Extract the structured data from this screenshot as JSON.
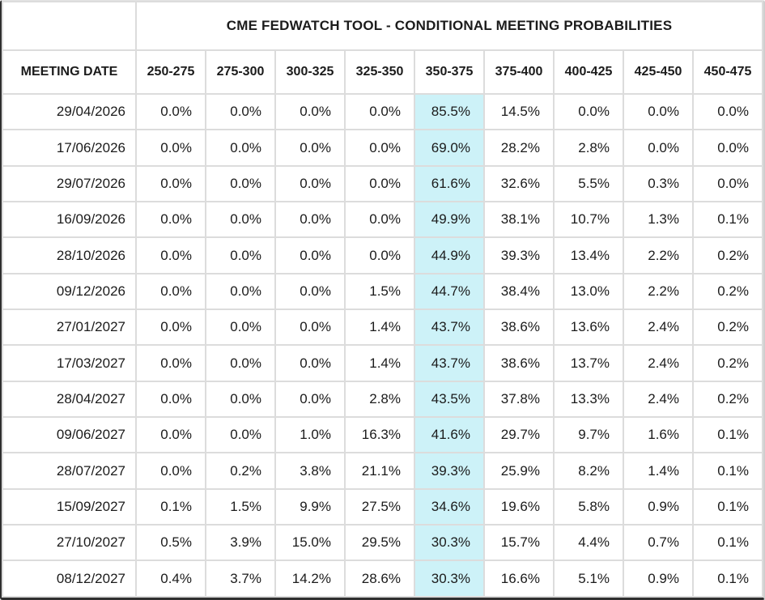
{
  "chart_data": {
    "type": "table",
    "title": "CME FEDWATCH TOOL - CONDITIONAL MEETING PROBABILITIES",
    "date_column_header": "MEETING DATE",
    "rate_columns": [
      "250-275",
      "275-300",
      "300-325",
      "325-350",
      "350-375",
      "375-400",
      "400-425",
      "425-450",
      "450-475"
    ],
    "highlight_column": "350-375",
    "highlight_column_index": 4,
    "rows": [
      {
        "date": "29/04/2026",
        "values": [
          "0.0%",
          "0.0%",
          "0.0%",
          "0.0%",
          "85.5%",
          "14.5%",
          "0.0%",
          "0.0%",
          "0.0%"
        ]
      },
      {
        "date": "17/06/2026",
        "values": [
          "0.0%",
          "0.0%",
          "0.0%",
          "0.0%",
          "69.0%",
          "28.2%",
          "2.8%",
          "0.0%",
          "0.0%"
        ]
      },
      {
        "date": "29/07/2026",
        "values": [
          "0.0%",
          "0.0%",
          "0.0%",
          "0.0%",
          "61.6%",
          "32.6%",
          "5.5%",
          "0.3%",
          "0.0%"
        ]
      },
      {
        "date": "16/09/2026",
        "values": [
          "0.0%",
          "0.0%",
          "0.0%",
          "0.0%",
          "49.9%",
          "38.1%",
          "10.7%",
          "1.3%",
          "0.1%"
        ]
      },
      {
        "date": "28/10/2026",
        "values": [
          "0.0%",
          "0.0%",
          "0.0%",
          "0.0%",
          "44.9%",
          "39.3%",
          "13.4%",
          "2.2%",
          "0.2%"
        ]
      },
      {
        "date": "09/12/2026",
        "values": [
          "0.0%",
          "0.0%",
          "0.0%",
          "1.5%",
          "44.7%",
          "38.4%",
          "13.0%",
          "2.2%",
          "0.2%"
        ]
      },
      {
        "date": "27/01/2027",
        "values": [
          "0.0%",
          "0.0%",
          "0.0%",
          "1.4%",
          "43.7%",
          "38.6%",
          "13.6%",
          "2.4%",
          "0.2%"
        ]
      },
      {
        "date": "17/03/2027",
        "values": [
          "0.0%",
          "0.0%",
          "0.0%",
          "1.4%",
          "43.7%",
          "38.6%",
          "13.7%",
          "2.4%",
          "0.2%"
        ]
      },
      {
        "date": "28/04/2027",
        "values": [
          "0.0%",
          "0.0%",
          "0.0%",
          "2.8%",
          "43.5%",
          "37.8%",
          "13.3%",
          "2.4%",
          "0.2%"
        ]
      },
      {
        "date": "09/06/2027",
        "values": [
          "0.0%",
          "0.0%",
          "1.0%",
          "16.3%",
          "41.6%",
          "29.7%",
          "9.7%",
          "1.6%",
          "0.1%"
        ]
      },
      {
        "date": "28/07/2027",
        "values": [
          "0.0%",
          "0.2%",
          "3.8%",
          "21.1%",
          "39.3%",
          "25.9%",
          "8.2%",
          "1.4%",
          "0.1%"
        ]
      },
      {
        "date": "15/09/2027",
        "values": [
          "0.1%",
          "1.5%",
          "9.9%",
          "27.5%",
          "34.6%",
          "19.6%",
          "5.8%",
          "0.9%",
          "0.1%"
        ]
      },
      {
        "date": "27/10/2027",
        "values": [
          "0.5%",
          "3.9%",
          "15.0%",
          "29.5%",
          "30.3%",
          "15.7%",
          "4.4%",
          "0.7%",
          "0.1%"
        ]
      },
      {
        "date": "08/12/2027",
        "values": [
          "0.4%",
          "3.7%",
          "14.2%",
          "28.6%",
          "30.3%",
          "16.6%",
          "5.1%",
          "0.9%",
          "0.1%"
        ]
      }
    ],
    "colors": {
      "highlight": "#cdf2f8",
      "grid": "#dcdcdc",
      "outer_border": "#2f2f2f",
      "text": "#1b1b1b",
      "cell_background": "#ffffff"
    },
    "layout_hints": {
      "title_spans_rate_columns": true,
      "values_alignment": "right",
      "headers_alignment": "center",
      "grid": "on"
    }
  }
}
